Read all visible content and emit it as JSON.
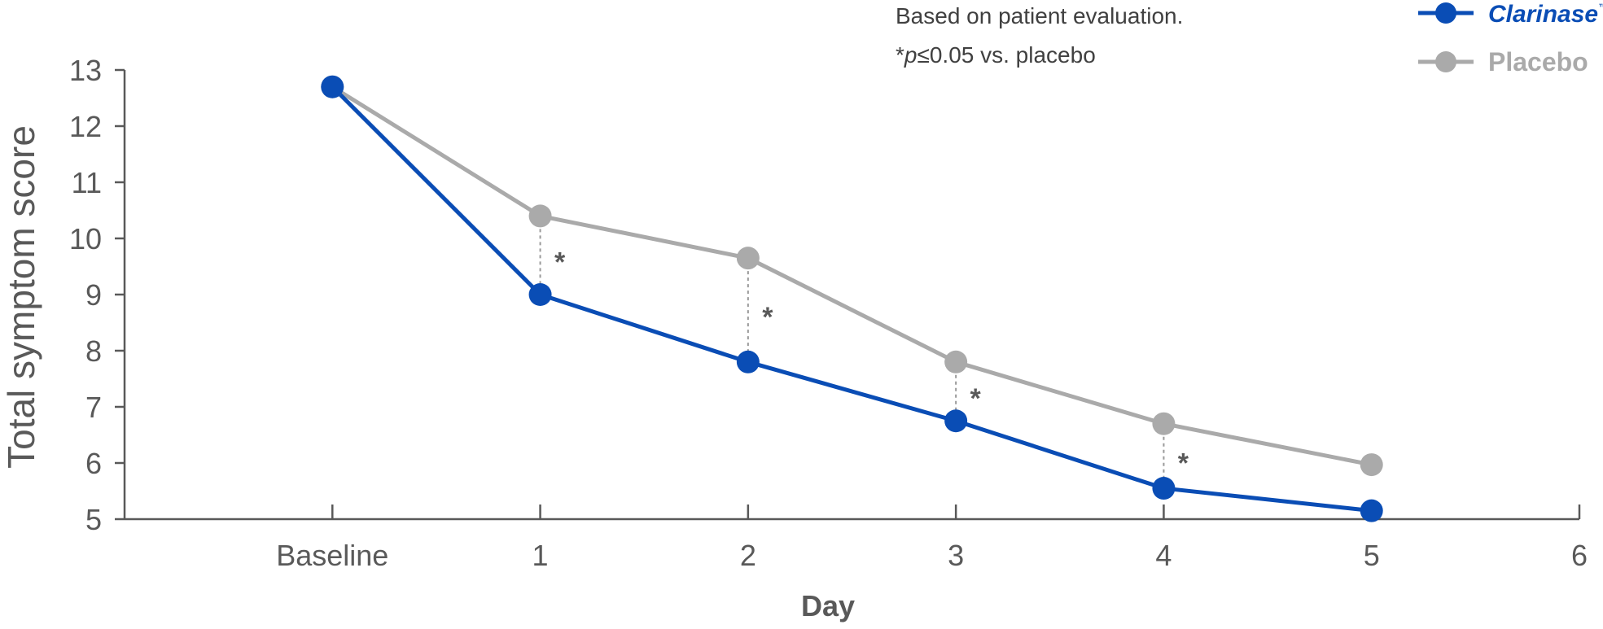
{
  "notes": {
    "evaluation": "Based on patient evaluation.",
    "sig_asterisk": "*",
    "sig_p": "p",
    "sig_rest": "≤0.05 vs. placebo"
  },
  "colors": {
    "clarinase": "#0a4db5",
    "placebo": "#aaaaaa",
    "axis": "#595959",
    "guide": "#9a9a9a"
  },
  "chart_data": {
    "type": "line",
    "xlabel": "Day",
    "ylabel": "Total symptom score",
    "xlim": [
      -1,
      6
    ],
    "ylim": [
      5,
      13
    ],
    "x_ticks": [
      {
        "value": 0,
        "label": "Baseline"
      },
      {
        "value": 1,
        "label": "1"
      },
      {
        "value": 2,
        "label": "2"
      },
      {
        "value": 3,
        "label": "3"
      },
      {
        "value": 4,
        "label": "4"
      },
      {
        "value": 5,
        "label": "5"
      },
      {
        "value": 6,
        "label": "6"
      }
    ],
    "y_ticks": [
      5,
      6,
      7,
      8,
      9,
      10,
      11,
      12,
      13
    ],
    "grid": false,
    "legend_position": "top-right",
    "series": [
      {
        "name": "Clarinase",
        "trademark": "™",
        "color": "#0a4db5",
        "x": [
          0,
          1,
          2,
          3,
          4,
          5
        ],
        "values": [
          12.7,
          9.0,
          7.8,
          6.75,
          5.55,
          5.15
        ]
      },
      {
        "name": "Placebo",
        "color": "#aaaaaa",
        "x": [
          0,
          1,
          2,
          3,
          4,
          5
        ],
        "values": [
          12.7,
          10.4,
          9.65,
          7.8,
          6.7,
          5.97
        ]
      }
    ],
    "significance": {
      "marker": "*",
      "x": [
        1,
        2,
        3,
        4
      ]
    }
  }
}
